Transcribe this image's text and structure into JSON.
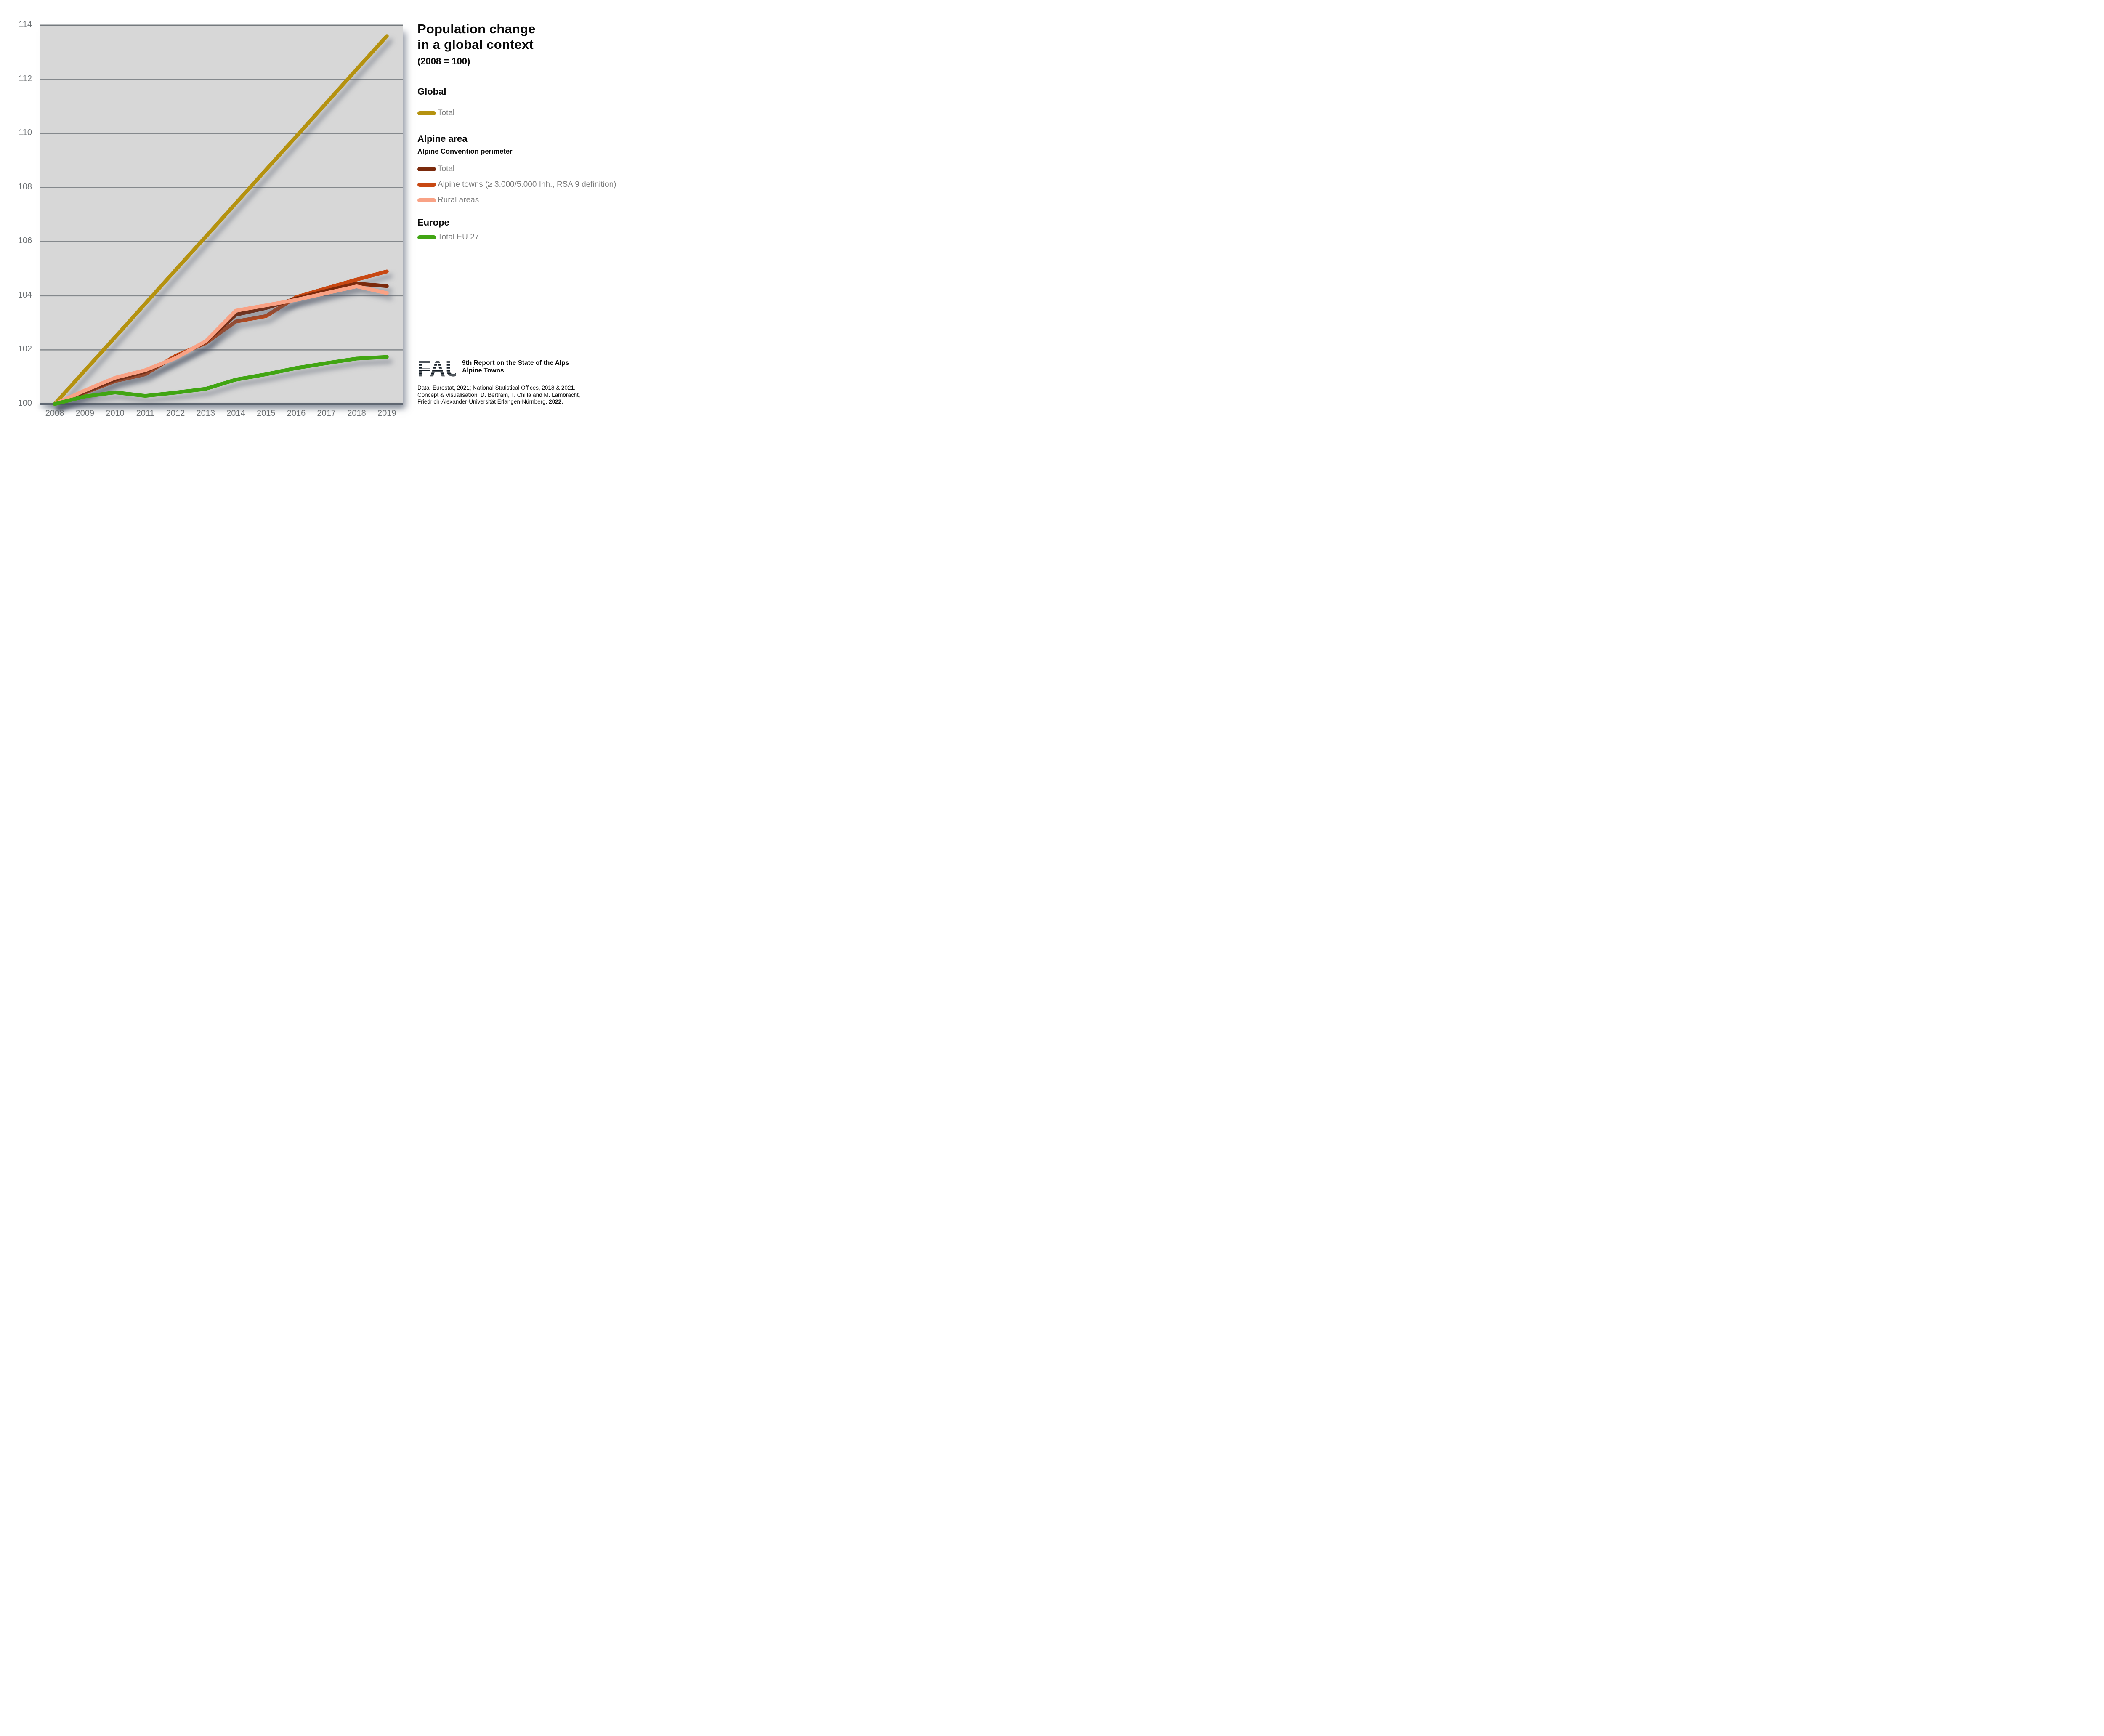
{
  "title": {
    "line1": "Population change",
    "line2": "in a global context",
    "subtitle": "(2008 = 100)"
  },
  "legend": {
    "sections": [
      {
        "heading": "Global",
        "items": [
          {
            "label": "Total",
            "color": "#b5920f"
          }
        ]
      },
      {
        "heading": "Alpine area",
        "subheading": "Alpine Convention perimeter",
        "items": [
          {
            "label": "Total",
            "color": "#7b2a0c"
          },
          {
            "label": "Alpine towns (≥ 3.000/5.000 Inh., RSA 9 definition)",
            "color": "#c84812"
          },
          {
            "label": "Rural areas",
            "color": "#f9a285"
          }
        ]
      },
      {
        "heading": "Europe",
        "items": [
          {
            "label": "Total EU 27",
            "color": "#41a513"
          }
        ]
      }
    ]
  },
  "footer": {
    "logo": "FAU",
    "report_line1": "9th Report on the State of the Alps",
    "report_line2": "Alpine Towns",
    "credit_line1": "Data: Eurostat, 2021; National Statistical Offices, 2018 & 2021.",
    "credit_line2": "Concept & Visualisation: D. Bertram, T. Chilla and M. Lambracht,",
    "credit_line3": "Friedrich-Alexander-Universität Erlangen-Nürnberg, ",
    "credit_line3_bold": "2022."
  },
  "colors": {
    "plot_background": "#d7d7d7",
    "gridline": "#84888c",
    "axis_text": "#6b6f72",
    "legend_text": "#7b7b7b"
  },
  "chart_data": {
    "type": "line",
    "title": "Population change in a global context (2008 = 100)",
    "xlabel": "",
    "ylabel": "",
    "x": [
      2008,
      2009,
      2010,
      2011,
      2012,
      2013,
      2014,
      2015,
      2016,
      2017,
      2018,
      2019
    ],
    "ylim": [
      100,
      114
    ],
    "y_ticks": [
      100,
      102,
      104,
      106,
      108,
      110,
      112,
      114
    ],
    "grid": "horizontal",
    "legend_position": "right",
    "series": [
      {
        "id": "global-total",
        "name": "Global – Total",
        "color": "#b5920f",
        "values": [
          100,
          101.24,
          102.47,
          103.71,
          104.95,
          106.18,
          107.42,
          108.66,
          109.89,
          111.13,
          112.37,
          113.6
        ]
      },
      {
        "id": "alpine-towns",
        "name": "Alpine towns (≥ 3.000/5.000 Inh., RSA 9 definition)",
        "color": "#c84812",
        "values": [
          100,
          100.42,
          100.85,
          101.1,
          101.78,
          102.25,
          103.05,
          103.25,
          103.95,
          104.28,
          104.6,
          104.9
        ]
      },
      {
        "id": "alpine-total",
        "name": "Alpine area – Total (Alpine Convention perimeter)",
        "color": "#7b2a0c",
        "values": [
          100,
          100.45,
          100.9,
          101.2,
          101.72,
          102.3,
          103.3,
          103.55,
          103.9,
          104.18,
          104.45,
          104.36
        ]
      },
      {
        "id": "rural-areas",
        "name": "Rural areas",
        "color": "#f9a285",
        "values": [
          100,
          100.5,
          100.97,
          101.25,
          101.7,
          102.32,
          103.45,
          103.65,
          103.85,
          104.1,
          104.35,
          104.1
        ]
      },
      {
        "id": "eu27-total",
        "name": "Europe – Total EU 27",
        "color": "#41a513",
        "values": [
          100,
          100.28,
          100.43,
          100.3,
          100.42,
          100.56,
          100.9,
          101.1,
          101.33,
          101.51,
          101.68,
          101.74
        ]
      }
    ]
  }
}
